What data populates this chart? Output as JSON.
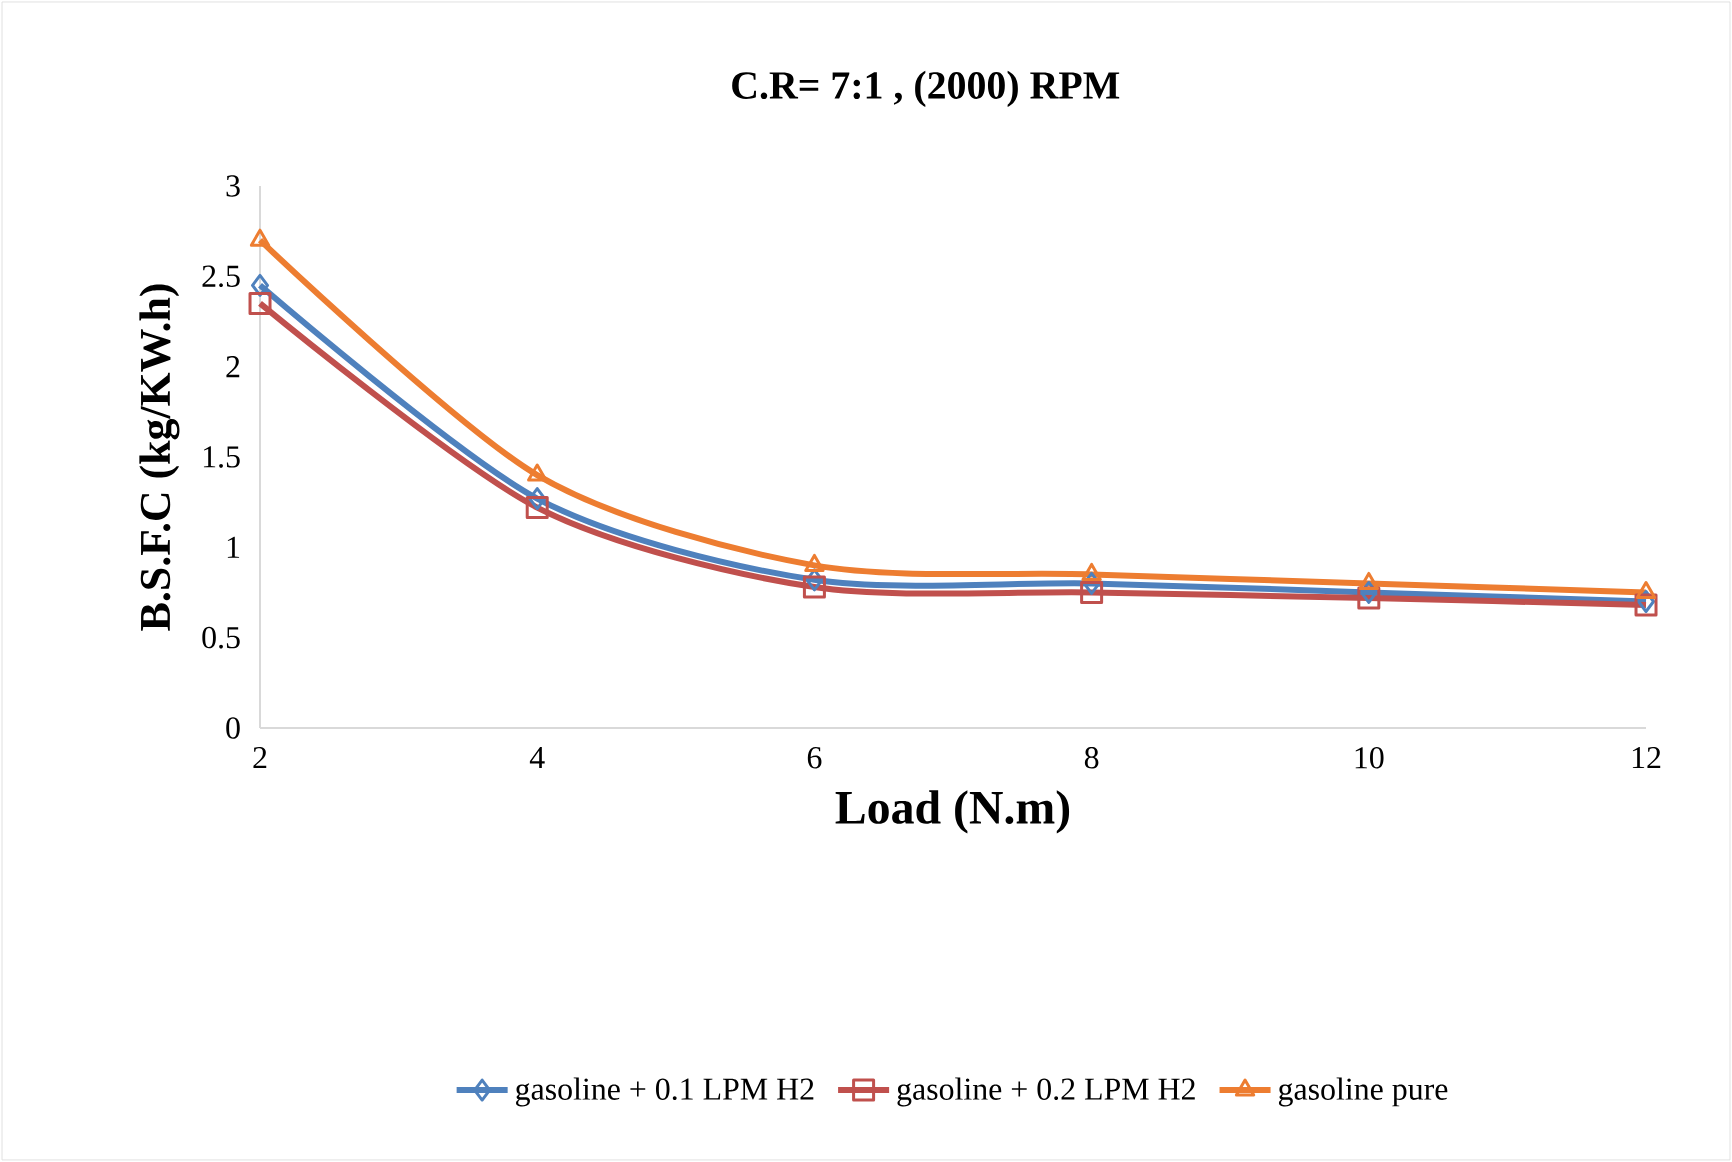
{
  "chart_data": {
    "type": "line",
    "title": "C.R= 7:1 , (2000) RPM",
    "xlabel": "Load (N.m)",
    "ylabel": "B.S.F.C (kg/KW.h)",
    "x": [
      2,
      4,
      6,
      8,
      10,
      12
    ],
    "series": [
      {
        "name": "gasoline + 0.1 LPM H2",
        "color": "#4f81bd",
        "marker": "diamond",
        "values": [
          2.45,
          1.27,
          0.82,
          0.8,
          0.75,
          0.7
        ]
      },
      {
        "name": "gasoline + 0.2 LPM H2",
        "color": "#c0504d",
        "marker": "square",
        "values": [
          2.35,
          1.22,
          0.78,
          0.75,
          0.72,
          0.68
        ]
      },
      {
        "name": "gasoline pure",
        "color": "#ed7d31",
        "marker": "triangle",
        "values": [
          2.7,
          1.4,
          0.9,
          0.85,
          0.8,
          0.75
        ]
      }
    ],
    "xlim": [
      2,
      12
    ],
    "xticks": [
      2,
      4,
      6,
      8,
      10,
      12
    ],
    "ylim": [
      0,
      3
    ],
    "yticks": [
      0,
      0.5,
      1,
      1.5,
      2,
      2.5,
      3
    ],
    "grid": false,
    "legend": "bottom",
    "line_style": "solid"
  }
}
